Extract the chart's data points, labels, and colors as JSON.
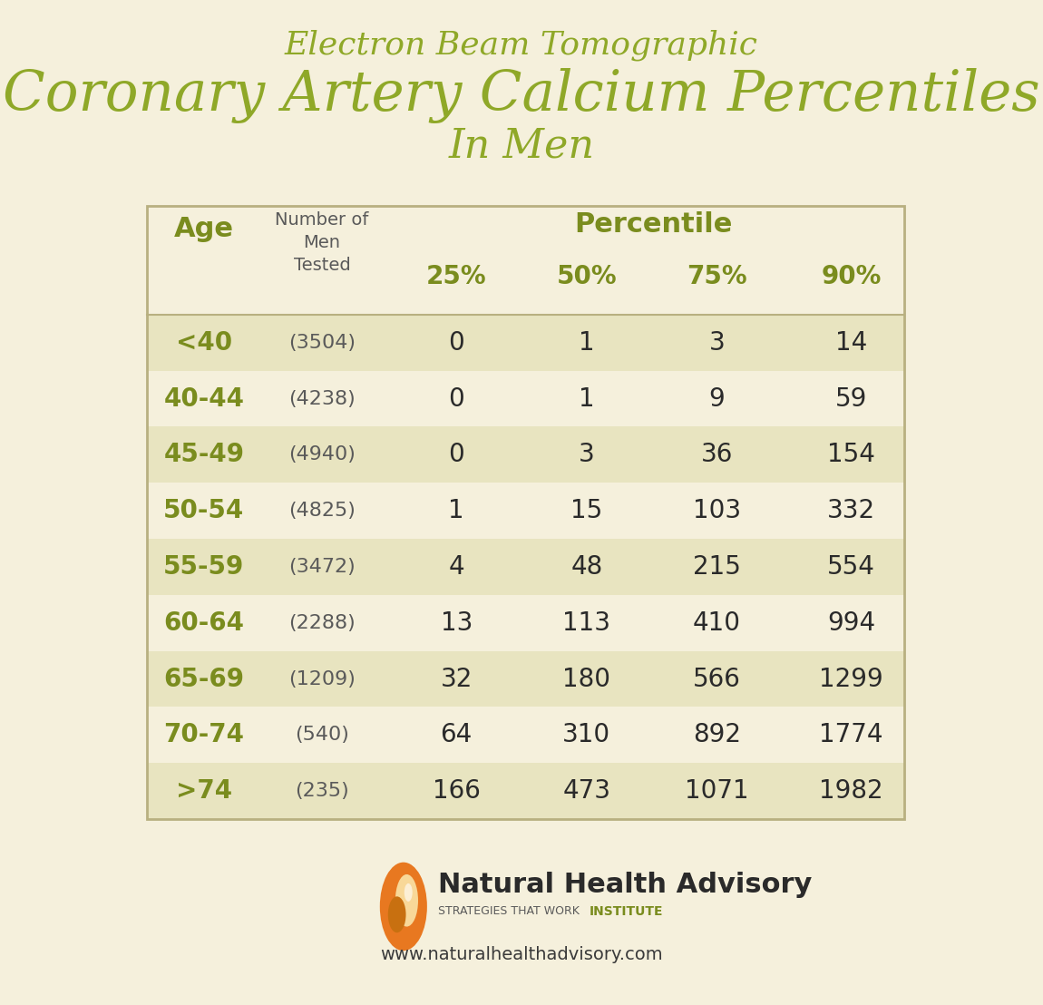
{
  "title_line1": "Electron Beam Tomographic",
  "title_line2": "Coronary Artery Calcium Percentiles",
  "title_line3": "In Men",
  "bg_color": "#f5f0dc",
  "row_color_odd": "#e8e4c0",
  "row_color_even": "#f5f0dc",
  "header_age_color": "#7a8c1e",
  "header_percentile_color": "#7a8c1e",
  "age_col_color": "#7a8c1e",
  "data_color": "#2a2a2a",
  "num_tested_color": "#5a5a5a",
  "title_color": "#8fa828",
  "percentile_label": "Percentile",
  "rows": [
    {
      "age": "<40",
      "n": "(3504)",
      "p25": "0",
      "p50": "1",
      "p75": "3",
      "p90": "14"
    },
    {
      "age": "40-44",
      "n": "(4238)",
      "p25": "0",
      "p50": "1",
      "p75": "9",
      "p90": "59"
    },
    {
      "age": "45-49",
      "n": "(4940)",
      "p25": "0",
      "p50": "3",
      "p75": "36",
      "p90": "154"
    },
    {
      "age": "50-54",
      "n": "(4825)",
      "p25": "1",
      "p50": "15",
      "p75": "103",
      "p90": "332"
    },
    {
      "age": "55-59",
      "n": "(3472)",
      "p25": "4",
      "p50": "48",
      "p75": "215",
      "p90": "554"
    },
    {
      "age": "60-64",
      "n": "(2288)",
      "p25": "13",
      "p50": "113",
      "p75": "410",
      "p90": "994"
    },
    {
      "age": "65-69",
      "n": "(1209)",
      "p25": "32",
      "p50": "180",
      "p75": "566",
      "p90": "1299"
    },
    {
      "age": "70-74",
      "n": "(540)",
      "p25": "64",
      "p50": "310",
      "p75": "892",
      "p90": "1774"
    },
    {
      "age": ">74",
      "n": "(235)",
      "p25": "166",
      "p50": "473",
      "p75": "1071",
      "p90": "1982"
    }
  ],
  "footer_text": "www.naturalhealthadvisory.com",
  "logo_text_main": "Natural Health Advisory",
  "logo_text_sub1": "STRATEGIES THAT WORK",
  "logo_text_sub2": "INSTITUTE"
}
